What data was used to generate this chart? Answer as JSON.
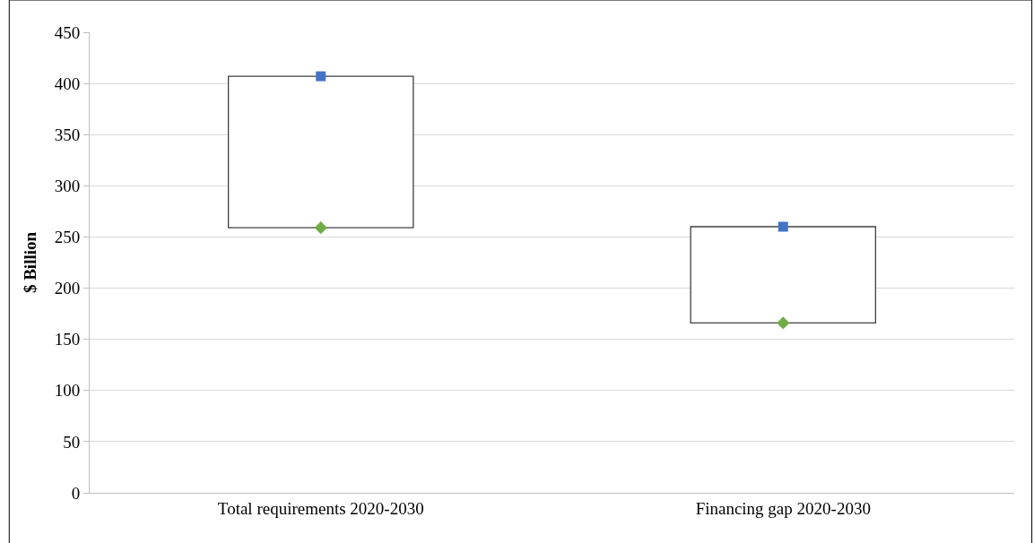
{
  "chart_data": {
    "type": "bar",
    "ylabel": "$ Billion",
    "categories": [
      "Total requirements 2020-2030",
      "Financing gap 2020-2030"
    ],
    "ylim": [
      0,
      450
    ],
    "yticks": [
      0,
      50,
      100,
      150,
      200,
      250,
      300,
      350,
      400,
      450
    ],
    "grid": "y",
    "legend": false,
    "series": [
      {
        "color": "#ffffff",
        "values": [
          148,
          94
        ],
        "base": [
          259,
          166
        ]
      },
      {
        "type": "scatter",
        "marker": "square",
        "color": "#4472c4",
        "x": [
          "Total requirements 2020-2030",
          "Financing gap 2020-2030"
        ],
        "values": [
          407,
          260
        ]
      },
      {
        "type": "scatter",
        "marker": "diamond",
        "color": "#70ad47",
        "x": [
          "Total requirements 2020-2030",
          "Financing gap 2020-2030"
        ],
        "values": [
          259,
          166
        ]
      }
    ]
  }
}
